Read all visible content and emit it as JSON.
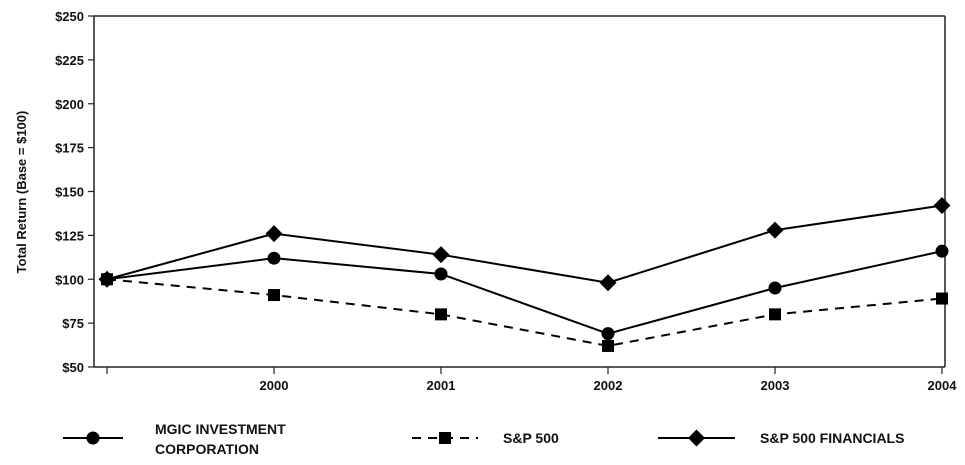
{
  "chart_data": {
    "type": "line",
    "title": "",
    "xlabel": "",
    "ylabel": "Total Return (Base = $100)",
    "categories": [
      "",
      "2000",
      "2001",
      "2002",
      "2003",
      "2004"
    ],
    "ylim": [
      50,
      250
    ],
    "y_ticks": [
      "$50",
      "$75",
      "$100",
      "$125",
      "$150",
      "$175",
      "$200",
      "$225",
      "$250"
    ],
    "y_tick_values": [
      50,
      75,
      100,
      125,
      150,
      175,
      200,
      225,
      250
    ],
    "grid": false,
    "legend_position": "bottom",
    "series": [
      {
        "name_lines": [
          "MGIC INVESTMENT",
          "CORPORATION"
        ],
        "marker": "circle",
        "style": "solid",
        "values": [
          100,
          112,
          103,
          69,
          95,
          116
        ]
      },
      {
        "name_lines": [
          "S&P 500"
        ],
        "marker": "square",
        "style": "dashed",
        "values": [
          100,
          91,
          80,
          62,
          80,
          89
        ]
      },
      {
        "name_lines": [
          "S&P 500 FINANCIALS"
        ],
        "marker": "diamond",
        "style": "solid",
        "values": [
          100,
          126,
          114,
          98,
          128,
          142
        ]
      }
    ]
  }
}
